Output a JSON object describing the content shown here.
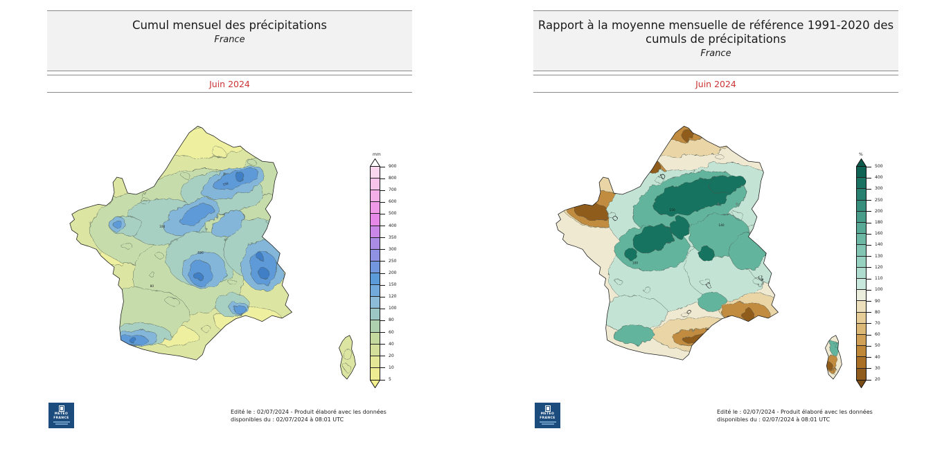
{
  "shared": {
    "footer_line1": "Edité le : 02/07/2024 - Produit élaboré avec les données",
    "footer_line2": "disponibles du : 02/07/2024 à 08:01 UTC",
    "logo_line1": "METEO",
    "logo_line2": "FRANCE",
    "date_color": "#cc3333",
    "header_background": "#f2f2f2"
  },
  "left_panel": {
    "title": "Cumul mensuel des précipitations",
    "subtitle": "France",
    "date": "Juin 2024",
    "legend": {
      "unit": "mm",
      "ticks": [
        "900",
        "800",
        "700",
        "600",
        "500",
        "400",
        "350",
        "300",
        "250",
        "200",
        "150",
        "120",
        "100",
        "80",
        "60",
        "40",
        "20",
        "10",
        "5"
      ],
      "colors": [
        "#ffffff",
        "#fad7ee",
        "#f7c3ea",
        "#f3aee8",
        "#ef99e7",
        "#e588e8",
        "#c988e8",
        "#ab8ce5",
        "#8f92e2",
        "#7397de",
        "#5c9bda",
        "#72aadc",
        "#8cbcd8",
        "#9cc6c4",
        "#aed0ae",
        "#c3d99e",
        "#d4e09a",
        "#e3e796",
        "#edec92",
        "#f4f08e"
      ]
    },
    "map": {
      "description": "Contour map of monthly precipitation totals over France, June 2024",
      "contour_labels": [
        "150",
        "100",
        "120",
        "80"
      ]
    }
  },
  "right_panel": {
    "title": "Rapport à la moyenne mensuelle de référence 1991-2020 des cumuls de précipitations",
    "subtitle": "France",
    "date": "Juin 2024",
    "legend": {
      "unit": "%",
      "ticks": [
        "500",
        "400",
        "300",
        "250",
        "200",
        "180",
        "160",
        "140",
        "130",
        "120",
        "110",
        "100",
        "90",
        "80",
        "70",
        "60",
        "50",
        "40",
        "30",
        "20"
      ],
      "colors": [
        "#0b5a4c",
        "#0f6354",
        "#1a7263",
        "#278070",
        "#368e7d",
        "#479c8a",
        "#58aa97",
        "#6cb8a5",
        "#81c5b2",
        "#97d1c0",
        "#aeddcf",
        "#c8e8dd",
        "#eceedd",
        "#ecdfbb",
        "#e6cc97",
        "#dcb877",
        "#cfa055",
        "#bf8838",
        "#a97026",
        "#8f5c1d",
        "#7a4c16"
      ]
    },
    "map": {
      "description": "Contour map of precipitation ratio to the 1991-2020 reference over France, June 2024",
      "contour_labels": [
        "150",
        "100",
        "140",
        "50"
      ]
    }
  }
}
